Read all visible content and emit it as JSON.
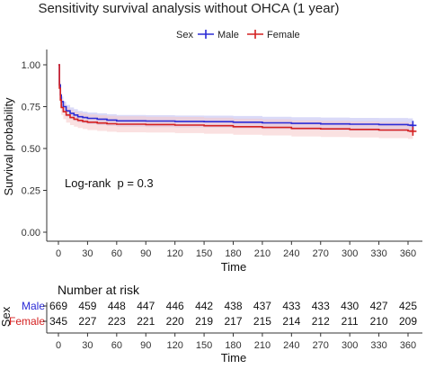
{
  "chart_data": {
    "type": "line",
    "title": "Sensitivity survival analysis without OHCA (1 year)",
    "xlabel": "Time",
    "ylabel": "Survival probability",
    "xlim": [
      0,
      365
    ],
    "ylim": [
      0,
      1
    ],
    "x_ticks": [
      0,
      30,
      60,
      90,
      120,
      150,
      180,
      210,
      240,
      270,
      300,
      330,
      360
    ],
    "y_ticks": [
      0.0,
      0.25,
      0.5,
      0.75,
      1.0
    ],
    "y_tick_labels": [
      "0.00",
      "0.25",
      "0.50",
      "0.75",
      "1.00"
    ],
    "grid": false,
    "legend": {
      "title": "Sex",
      "placement": "top",
      "entries": [
        "Male",
        "Female"
      ]
    },
    "annotation": "Log-rank  p = 0.3",
    "series": [
      {
        "name": "Male",
        "color": "#2b2bd6",
        "band_color": "#bcbcf2",
        "x": [
          0,
          1,
          2,
          3,
          5,
          8,
          12,
          16,
          20,
          25,
          30,
          40,
          50,
          60,
          90,
          120,
          150,
          180,
          210,
          240,
          270,
          300,
          330,
          360,
          365
        ],
        "y": [
          1.0,
          0.88,
          0.82,
          0.78,
          0.75,
          0.725,
          0.71,
          0.7,
          0.69,
          0.685,
          0.68,
          0.675,
          0.67,
          0.665,
          0.664,
          0.662,
          0.66,
          0.657,
          0.653,
          0.65,
          0.647,
          0.645,
          0.643,
          0.64,
          0.638
        ],
        "lower": [
          1.0,
          0.855,
          0.79,
          0.75,
          0.72,
          0.69,
          0.675,
          0.665,
          0.655,
          0.65,
          0.645,
          0.64,
          0.635,
          0.63,
          0.628,
          0.626,
          0.624,
          0.62,
          0.616,
          0.612,
          0.609,
          0.606,
          0.603,
          0.6,
          0.598
        ],
        "upper": [
          1.0,
          0.905,
          0.85,
          0.81,
          0.78,
          0.76,
          0.745,
          0.735,
          0.725,
          0.72,
          0.715,
          0.71,
          0.705,
          0.7,
          0.699,
          0.697,
          0.696,
          0.694,
          0.69,
          0.687,
          0.685,
          0.683,
          0.682,
          0.68,
          0.678
        ],
        "censor_x": 365,
        "censor_y": 0.638
      },
      {
        "name": "Female",
        "color": "#d42020",
        "band_color": "#f6c8c8",
        "x": [
          0,
          1,
          2,
          3,
          5,
          8,
          12,
          16,
          20,
          25,
          30,
          40,
          50,
          60,
          90,
          120,
          150,
          180,
          210,
          240,
          270,
          300,
          330,
          360,
          365
        ],
        "y": [
          1.0,
          0.86,
          0.79,
          0.745,
          0.72,
          0.7,
          0.685,
          0.675,
          0.668,
          0.662,
          0.657,
          0.652,
          0.648,
          0.645,
          0.643,
          0.64,
          0.636,
          0.63,
          0.626,
          0.62,
          0.617,
          0.614,
          0.61,
          0.605,
          0.603
        ],
        "lower": [
          1.0,
          0.82,
          0.745,
          0.7,
          0.675,
          0.655,
          0.64,
          0.63,
          0.622,
          0.616,
          0.61,
          0.605,
          0.6,
          0.597,
          0.595,
          0.592,
          0.588,
          0.582,
          0.578,
          0.572,
          0.569,
          0.566,
          0.562,
          0.557,
          0.555
        ],
        "upper": [
          1.0,
          0.895,
          0.83,
          0.79,
          0.765,
          0.745,
          0.73,
          0.72,
          0.713,
          0.708,
          0.703,
          0.699,
          0.695,
          0.692,
          0.69,
          0.688,
          0.684,
          0.678,
          0.674,
          0.668,
          0.665,
          0.662,
          0.658,
          0.653,
          0.651
        ],
        "censor_x": 365,
        "censor_y": 0.603
      }
    ],
    "risk_table": {
      "title": "Number at risk",
      "y_axis_label": "Sex",
      "x_axis_label": "Time",
      "times": [
        0,
        30,
        60,
        90,
        120,
        150,
        180,
        210,
        240,
        270,
        300,
        330,
        360
      ],
      "rows": [
        {
          "label": "Male",
          "color": "#2b2bd6",
          "counts": [
            669,
            459,
            448,
            447,
            446,
            442,
            438,
            437,
            433,
            433,
            430,
            427,
            425
          ]
        },
        {
          "label": "Female",
          "color": "#d42020",
          "counts": [
            345,
            227,
            223,
            221,
            220,
            219,
            217,
            215,
            214,
            212,
            211,
            210,
            209
          ]
        }
      ]
    }
  }
}
